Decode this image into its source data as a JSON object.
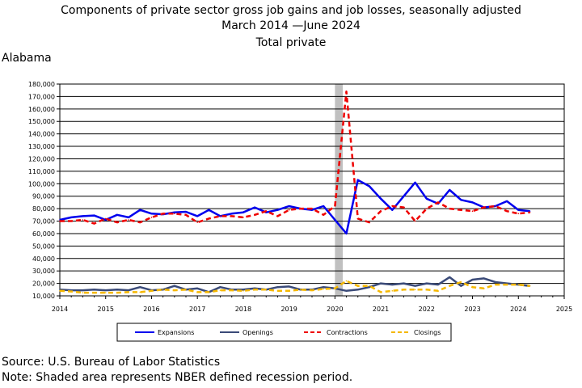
{
  "title": {
    "line1": "Components of private sector gross job gains and job losses, seasonally adjusted",
    "line2": "March 2014 —June 2024",
    "line3": "Total private"
  },
  "region": "Alabama",
  "footer": {
    "source": "Source: U.S. Bureau of Labor Statistics",
    "note": "Note: Shaded area represents NBER defined recession period."
  },
  "chart_data": {
    "type": "line",
    "x_start": 2014.0,
    "x_step": 0.25,
    "xlim": [
      2014,
      2025
    ],
    "ylim": [
      10000,
      180000
    ],
    "y_ticks": [
      10000,
      20000,
      30000,
      40000,
      50000,
      60000,
      70000,
      80000,
      90000,
      100000,
      110000,
      120000,
      130000,
      140000,
      150000,
      160000,
      170000,
      180000
    ],
    "y_tick_labels": [
      "10,000",
      "20,000",
      "30,000",
      "40,000",
      "50,000",
      "60,000",
      "70,000",
      "80,000",
      "90,000",
      "100,000",
      "110,000",
      "120,000",
      "130,000",
      "140,000",
      "150,000",
      "160,000",
      "170,000",
      "180,000"
    ],
    "x_ticks": [
      2014,
      2015,
      2016,
      2017,
      2018,
      2019,
      2020,
      2021,
      2022,
      2023,
      2024,
      2025
    ],
    "x_tick_labels": [
      "2014",
      "2015",
      "2016",
      "2017",
      "2018",
      "2019",
      "2020",
      "2021",
      "2022",
      "2023",
      "2024",
      "2025"
    ],
    "recession": [
      2020.0,
      2020.17
    ],
    "grid": "horizontal",
    "legend_position": "bottom",
    "series": [
      {
        "name": "Expansions",
        "color": "#0000ee",
        "dash": "solid",
        "width": 2,
        "values": [
          71000,
          73000,
          74000,
          74500,
          71000,
          75000,
          73000,
          79000,
          76000,
          75500,
          77000,
          77500,
          74000,
          79000,
          74000,
          76000,
          77000,
          81000,
          77000,
          79000,
          82000,
          80000,
          79000,
          82000,
          71000,
          60000,
          103000,
          98000,
          88000,
          79000,
          90000,
          101000,
          88000,
          84000,
          95000,
          87000,
          85000,
          81000,
          82000,
          86000,
          79000,
          78000
        ]
      },
      {
        "name": "Openings",
        "color": "#3a4a78",
        "dash": "solid",
        "width": 2,
        "values": [
          15000,
          14500,
          14500,
          15000,
          14500,
          15000,
          14500,
          17000,
          14500,
          15000,
          18000,
          15000,
          16000,
          13000,
          17000,
          15000,
          15000,
          16000,
          15000,
          17000,
          17500,
          15000,
          15000,
          17000,
          16000,
          14000,
          15000,
          17000,
          20000,
          19000,
          20000,
          18000,
          20000,
          19000,
          25000,
          18000,
          23000,
          24000,
          21000,
          20000,
          19000,
          18000
        ]
      },
      {
        "name": "Contractions",
        "color": "#ee0000",
        "dash": "dashed",
        "width": 2,
        "values": [
          70000,
          70000,
          71000,
          68000,
          72000,
          69000,
          71000,
          69000,
          73000,
          76000,
          76000,
          75000,
          69000,
          72000,
          74000,
          74000,
          73000,
          75000,
          78000,
          74000,
          79000,
          80000,
          80000,
          75000,
          82000,
          174000,
          72000,
          69000,
          78000,
          82000,
          81000,
          70000,
          80000,
          85000,
          80000,
          79000,
          78000,
          81000,
          82000,
          78000,
          76000,
          77000
        ]
      },
      {
        "name": "Closings",
        "color": "#f5b800",
        "dash": "dashed",
        "width": 2,
        "values": [
          14000,
          13500,
          12500,
          12500,
          12500,
          12500,
          13000,
          13000,
          14000,
          15000,
          14500,
          15000,
          13000,
          13000,
          14500,
          14500,
          14000,
          15000,
          15000,
          14000,
          14000,
          15000,
          14500,
          15500,
          16000,
          22000,
          18000,
          18000,
          13000,
          14000,
          15000,
          15000,
          15000,
          14000,
          18000,
          21000,
          17000,
          16000,
          19000,
          19000,
          19000,
          18000
        ]
      }
    ]
  }
}
